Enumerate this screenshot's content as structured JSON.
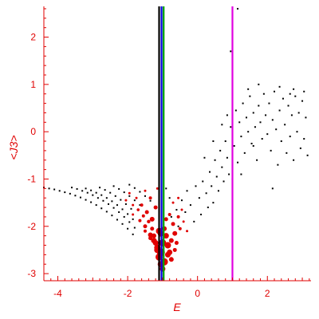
{
  "chart_data": {
    "type": "scatter",
    "title": "",
    "xlabel": "E",
    "ylabel": "<J3>",
    "xlim": [
      -4.4,
      3.25
    ],
    "ylim": [
      -3.15,
      2.65
    ],
    "x_ticks": [
      -4,
      -2,
      0,
      2
    ],
    "y_ticks": [
      -3,
      -2,
      -1,
      0,
      1,
      2
    ],
    "grid": false,
    "colors": {
      "axis": "#e00000",
      "tick_text": "#e00000",
      "black_points": "#000000",
      "red_points": "#e00000",
      "line_black": "#000000",
      "line_blue": "#0000e0",
      "line_green": "#00a000",
      "line_magenta": "#e000e0"
    },
    "vertical_lines": [
      {
        "x": -1.1,
        "color": "#000000"
      },
      {
        "x": -1.03,
        "color": "#0000e0"
      },
      {
        "x": -0.97,
        "color": "#00a000"
      },
      {
        "x": 1.0,
        "color": "#e000e0"
      }
    ],
    "series": [
      {
        "color": "#000000",
        "marker_size": 1,
        "points": [
          [
            -4.4,
            -1.18
          ],
          [
            -4.25,
            -1.2
          ],
          [
            -4.1,
            -1.22
          ],
          [
            -3.95,
            -1.25
          ],
          [
            -3.8,
            -1.28
          ],
          [
            -3.65,
            -1.31
          ],
          [
            -3.5,
            -1.35
          ],
          [
            -3.35,
            -1.39
          ],
          [
            -3.2,
            -1.44
          ],
          [
            -3.05,
            -1.49
          ],
          [
            -2.9,
            -1.55
          ],
          [
            -2.75,
            -1.62
          ],
          [
            -2.6,
            -1.69
          ],
          [
            -2.45,
            -1.77
          ],
          [
            -2.3,
            -1.86
          ],
          [
            -2.15,
            -1.95
          ],
          [
            -2.0,
            -2.05
          ],
          [
            -1.85,
            -2.17
          ],
          [
            -3.6,
            -1.18
          ],
          [
            -3.45,
            -1.21
          ],
          [
            -3.3,
            -1.25
          ],
          [
            -3.15,
            -1.29
          ],
          [
            -3.0,
            -1.34
          ],
          [
            -2.85,
            -1.4
          ],
          [
            -2.7,
            -1.46
          ],
          [
            -2.55,
            -1.53
          ],
          [
            -2.4,
            -1.61
          ],
          [
            -2.25,
            -1.7
          ],
          [
            -2.1,
            -1.8
          ],
          [
            -1.95,
            -1.91
          ],
          [
            -1.8,
            -2.03
          ],
          [
            -3.2,
            -1.2
          ],
          [
            -3.05,
            -1.24
          ],
          [
            -2.9,
            -1.29
          ],
          [
            -2.75,
            -1.34
          ],
          [
            -2.6,
            -1.4
          ],
          [
            -2.45,
            -1.47
          ],
          [
            -2.3,
            -1.55
          ],
          [
            -2.15,
            -1.64
          ],
          [
            -2.0,
            -1.74
          ],
          [
            -1.85,
            -1.85
          ],
          [
            -2.8,
            -1.18
          ],
          [
            -2.65,
            -1.23
          ],
          [
            -2.5,
            -1.29
          ],
          [
            -2.35,
            -1.36
          ],
          [
            -2.2,
            -1.44
          ],
          [
            -2.05,
            -1.53
          ],
          [
            -1.9,
            -1.63
          ],
          [
            -2.4,
            -1.15
          ],
          [
            -2.25,
            -1.21
          ],
          [
            -2.1,
            -1.28
          ],
          [
            -1.95,
            -1.36
          ],
          [
            -1.8,
            -1.45
          ],
          [
            -1.65,
            -1.55
          ],
          [
            -1.95,
            -1.12
          ],
          [
            -1.8,
            -1.19
          ],
          [
            -1.65,
            -1.27
          ],
          [
            -1.5,
            -1.36
          ],
          [
            -1.35,
            -1.46
          ],
          [
            -0.9,
            -1.2
          ],
          [
            -0.8,
            -1.4
          ],
          [
            -0.75,
            -1.8
          ],
          [
            -0.6,
            -1.65
          ],
          [
            -0.55,
            -2.0
          ],
          [
            -0.45,
            -1.45
          ],
          [
            -0.35,
            -1.7
          ],
          [
            -0.3,
            -1.25
          ],
          [
            -0.2,
            -1.55
          ],
          [
            -0.1,
            -1.9
          ],
          [
            -0.05,
            -1.15
          ],
          [
            0.05,
            -1.4
          ],
          [
            0.1,
            -1.75
          ],
          [
            0.15,
            -1.05
          ],
          [
            0.25,
            -1.3
          ],
          [
            0.3,
            -1.6
          ],
          [
            0.35,
            -0.85
          ],
          [
            0.4,
            -1.15
          ],
          [
            0.45,
            -1.5
          ],
          [
            0.5,
            -0.6
          ],
          [
            0.55,
            -0.95
          ],
          [
            0.6,
            -1.25
          ],
          [
            0.65,
            -0.4
          ],
          [
            0.7,
            -0.75
          ],
          [
            0.75,
            -1.05
          ],
          [
            0.8,
            -0.2
          ],
          [
            0.85,
            -0.55
          ],
          [
            0.9,
            -0.9
          ],
          [
            0.95,
            0.1
          ],
          [
            1.05,
            -0.3
          ],
          [
            1.1,
            0.45
          ],
          [
            1.15,
            -0.65
          ],
          [
            1.2,
            0.2
          ],
          [
            1.25,
            -0.1
          ],
          [
            1.3,
            0.6
          ],
          [
            1.35,
            -0.45
          ],
          [
            1.4,
            0.3
          ],
          [
            1.45,
            0.0
          ],
          [
            1.5,
            0.75
          ],
          [
            1.55,
            -0.25
          ],
          [
            1.6,
            0.4
          ],
          [
            1.65,
            0.1
          ],
          [
            1.7,
            -0.6
          ],
          [
            1.75,
            0.55
          ],
          [
            1.8,
            0.2
          ],
          [
            1.85,
            -0.15
          ],
          [
            1.9,
            0.8
          ],
          [
            1.95,
            0.35
          ],
          [
            2.0,
            -0.05
          ],
          [
            2.05,
            0.6
          ],
          [
            2.1,
            -0.4
          ],
          [
            2.15,
            0.25
          ],
          [
            2.2,
            0.85
          ],
          [
            2.25,
            0.05
          ],
          [
            2.3,
            -0.7
          ],
          [
            2.35,
            0.45
          ],
          [
            2.4,
            -0.2
          ],
          [
            2.45,
            0.7
          ],
          [
            2.5,
            0.15
          ],
          [
            2.55,
            -0.45
          ],
          [
            2.6,
            0.55
          ],
          [
            2.65,
            -0.1
          ],
          [
            2.7,
            0.35
          ],
          [
            2.75,
            -0.6
          ],
          [
            2.8,
            0.75
          ],
          [
            2.85,
            0.0
          ],
          [
            2.9,
            0.4
          ],
          [
            2.95,
            -0.35
          ],
          [
            3.0,
            0.65
          ],
          [
            3.05,
            -0.15
          ],
          [
            3.1,
            0.3
          ],
          [
            3.15,
            -0.5
          ],
          [
            0.2,
            -0.55
          ],
          [
            0.45,
            -0.2
          ],
          [
            0.7,
            0.15
          ],
          [
            1.0,
            -1.0
          ],
          [
            1.25,
            -0.9
          ],
          [
            1.6,
            -0.3
          ],
          [
            2.15,
            -1.2
          ],
          [
            2.75,
            0.9
          ],
          [
            3.05,
            0.85
          ],
          [
            0.95,
            1.7
          ],
          [
            1.15,
            2.6
          ],
          [
            0.85,
            0.35
          ],
          [
            1.75,
            1.0
          ],
          [
            2.35,
            0.95
          ],
          [
            1.45,
            0.9
          ],
          [
            2.65,
            0.8
          ]
        ]
      },
      {
        "color": "#e00000",
        "points": [
          [
            -2.05,
            -1.45,
            1.5
          ],
          [
            -1.85,
            -1.55,
            1.5
          ],
          [
            -1.7,
            -1.65,
            1.8
          ],
          [
            -1.55,
            -1.78,
            2.0
          ],
          [
            -1.4,
            -1.9,
            2.2
          ],
          [
            -1.3,
            -2.05,
            2.5
          ],
          [
            -1.25,
            -2.2,
            3.0
          ],
          [
            -1.2,
            -2.35,
            3.5
          ],
          [
            -1.15,
            -2.5,
            4.0
          ],
          [
            -1.1,
            -2.65,
            4.5
          ],
          [
            -1.05,
            -2.8,
            4.0
          ],
          [
            -1.0,
            -2.9,
            3.5
          ],
          [
            -1.85,
            -1.75,
            1.5
          ],
          [
            -1.65,
            -1.88,
            2.0
          ],
          [
            -1.5,
            -2.0,
            2.5
          ],
          [
            -1.35,
            -2.18,
            3.0
          ],
          [
            -1.25,
            -2.3,
            3.5
          ],
          [
            -1.15,
            -2.45,
            4.0
          ],
          [
            -1.95,
            -1.3,
            1.5
          ],
          [
            -1.75,
            -1.4,
            1.5
          ],
          [
            -1.6,
            -1.55,
            2.0
          ],
          [
            -1.45,
            -1.7,
            2.5
          ],
          [
            -1.3,
            -1.85,
            3.0
          ],
          [
            -1.5,
            -1.25,
            1.5
          ],
          [
            -1.35,
            -1.4,
            2.0
          ],
          [
            -1.2,
            -1.6,
            2.5
          ],
          [
            -1.15,
            -1.2,
            1.5
          ],
          [
            -0.95,
            -2.05,
            3.0
          ],
          [
            -0.9,
            -2.2,
            3.5
          ],
          [
            -0.85,
            -2.4,
            4.0
          ],
          [
            -0.8,
            -2.55,
            3.5
          ],
          [
            -0.75,
            -2.7,
            3.0
          ],
          [
            -0.9,
            -1.85,
            2.5
          ],
          [
            -0.8,
            -1.75,
            2.0
          ],
          [
            -0.7,
            -1.95,
            2.5
          ],
          [
            -0.65,
            -2.15,
            3.0
          ],
          [
            -0.6,
            -2.35,
            2.5
          ],
          [
            -0.55,
            -1.8,
            2.0
          ],
          [
            -0.5,
            -2.05,
            2.0
          ],
          [
            -0.45,
            -1.65,
            1.5
          ],
          [
            -0.4,
            -1.9,
            1.5
          ],
          [
            -0.3,
            -2.1,
            1.5
          ],
          [
            -0.7,
            -1.5,
            1.5
          ],
          [
            -0.55,
            -1.4,
            1.5
          ],
          [
            -1.05,
            -2.15,
            4.0
          ],
          [
            -1.0,
            -2.35,
            4.5
          ],
          [
            -1.05,
            -2.55,
            5.0
          ],
          [
            -0.95,
            -2.75,
            4.5
          ],
          [
            -1.1,
            -2.1,
            4.0
          ],
          [
            -0.85,
            -2.6,
            3.5
          ],
          [
            -1.35,
            -2.25,
            2.5
          ],
          [
            -1.5,
            -2.1,
            2.0
          ],
          [
            -0.75,
            -2.3,
            3.0
          ],
          [
            -0.65,
            -2.5,
            2.5
          ]
        ]
      }
    ]
  }
}
